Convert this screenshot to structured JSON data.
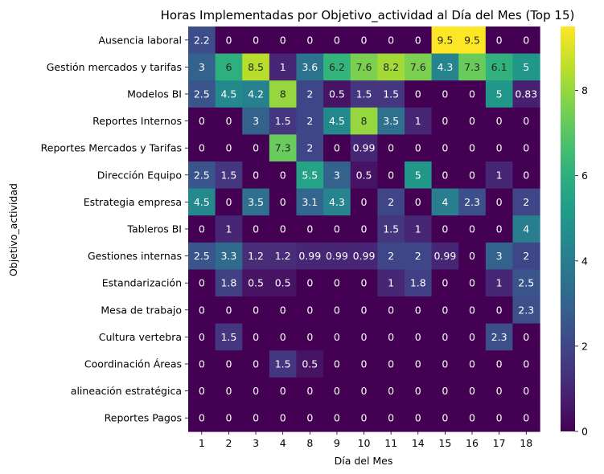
{
  "chart_data": {
    "type": "heatmap",
    "title": "Horas Implementadas por Objetivo_actividad al Día del Mes (Top 15)",
    "xlabel": "Día del Mes",
    "ylabel": "Objetivo_actividad",
    "x": [
      "1",
      "2",
      "3",
      "4",
      "8",
      "9",
      "10",
      "11",
      "14",
      "15",
      "16",
      "17",
      "18"
    ],
    "y": [
      "Ausencia laboral",
      "Gestión mercados y tarifas",
      "Modelos BI",
      "Reportes Internos",
      "Reportes Mercados y Tarifas",
      "Dirección Equipo",
      "Estrategia empresa",
      "Tableros BI",
      "Gestiones internas",
      "Estandarización",
      "Mesa de trabajo",
      "Cultura vertebra",
      "Coordinación Áreas",
      "alineación estratégica",
      "Reportes Pagos"
    ],
    "values": [
      [
        2.2,
        0,
        0,
        0,
        0,
        0,
        0,
        0,
        0,
        9.5,
        9.5,
        0,
        0
      ],
      [
        3,
        6,
        8.5,
        1,
        3.6,
        6.2,
        7.6,
        8.2,
        7.6,
        4.3,
        7.3,
        6.1,
        5
      ],
      [
        2.5,
        4.5,
        4.2,
        8,
        2,
        0.5,
        1.5,
        1.5,
        0,
        0,
        0,
        5,
        0.83
      ],
      [
        0,
        0,
        3,
        1.5,
        2,
        4.5,
        8,
        3.5,
        1,
        0,
        0,
        0,
        0
      ],
      [
        0,
        0,
        0,
        7.3,
        2,
        0,
        0.99,
        0,
        0,
        0,
        0,
        0,
        0
      ],
      [
        2.5,
        1.5,
        0,
        0,
        5.5,
        3,
        0.5,
        0,
        5,
        0,
        0,
        1,
        0
      ],
      [
        4.5,
        0,
        3.5,
        0,
        3.1,
        4.3,
        0,
        2,
        0,
        4,
        2.3,
        0,
        2
      ],
      [
        0,
        1,
        0,
        0,
        0,
        0,
        0,
        1.5,
        1,
        0,
        0,
        0,
        4
      ],
      [
        2.5,
        3.3,
        1.2,
        1.2,
        0.99,
        0.99,
        0.99,
        2,
        2,
        0.99,
        0,
        3,
        2
      ],
      [
        0,
        1.8,
        0.5,
        0.5,
        0,
        0,
        0,
        1,
        1.8,
        0,
        0,
        1,
        2.5
      ],
      [
        0,
        0,
        0,
        0,
        0,
        0,
        0,
        0,
        0,
        0,
        0,
        0,
        2.3
      ],
      [
        0,
        1.5,
        0,
        0,
        0,
        0,
        0,
        0,
        0,
        0,
        0,
        2.3,
        0
      ],
      [
        0,
        0,
        0,
        1.5,
        0.5,
        0,
        0,
        0,
        0,
        0,
        0,
        0,
        0
      ],
      [
        0,
        0,
        0,
        0,
        0,
        0,
        0,
        0,
        0,
        0,
        0,
        0,
        0
      ],
      [
        0,
        0,
        0,
        0,
        0,
        0,
        0,
        0,
        0,
        0,
        0,
        0,
        0
      ]
    ],
    "colormap": "viridis",
    "colorbar": {
      "range": [
        0,
        9.5
      ],
      "ticks": [
        "0",
        "2",
        "4",
        "6",
        "8"
      ]
    },
    "annotations": true,
    "grid": false
  }
}
